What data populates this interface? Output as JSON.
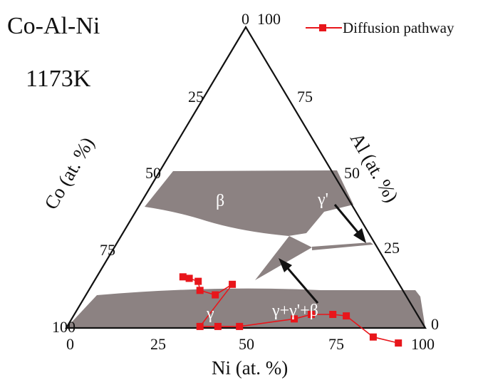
{
  "diagram": {
    "system": "Co-Al-Ni",
    "temperature": "1173K"
  },
  "legend": {
    "label": "Diffusion pathway",
    "color": "#e8161b"
  },
  "axes": {
    "bottom": {
      "label": "Ni (at. %)",
      "ticks": [
        "0",
        "25",
        "50",
        "75",
        "100"
      ]
    },
    "left": {
      "label": "Co (at. %)",
      "ticks": [
        "100",
        "75",
        "50",
        "25",
        "0"
      ]
    },
    "right": {
      "label": "Al (at. %)",
      "ticks": [
        "100",
        "75",
        "50",
        "25",
        "0"
      ]
    }
  },
  "regions": {
    "beta": "β",
    "gamma_prime": "γ'",
    "gamma": "γ",
    "three_phase": "γ+γ'+β"
  },
  "colors": {
    "phase_fill": "#8c8282",
    "frame": "#111111",
    "pathway": "#e8161b"
  },
  "pathway_points": [
    {
      "ni": 24,
      "al": 17
    },
    {
      "ni": 26,
      "al": 16.5
    },
    {
      "ni": 29,
      "al": 15.5
    },
    {
      "ni": 31,
      "al": 12.5
    },
    {
      "ni": 36,
      "al": 11
    },
    {
      "ni": 39,
      "al": 14.5
    },
    {
      "ni": 37,
      "al": 0.5
    },
    {
      "ni": 42,
      "al": 0.5
    },
    {
      "ni": 48,
      "al": 0.5
    },
    {
      "ni": 62,
      "al": 3
    },
    {
      "ni": 66,
      "al": 4.5
    },
    {
      "ni": 72,
      "al": 4.5
    },
    {
      "ni": 76,
      "al": 4
    },
    {
      "ni": 87,
      "al": -3
    },
    {
      "ni": 95,
      "al": -5
    }
  ]
}
